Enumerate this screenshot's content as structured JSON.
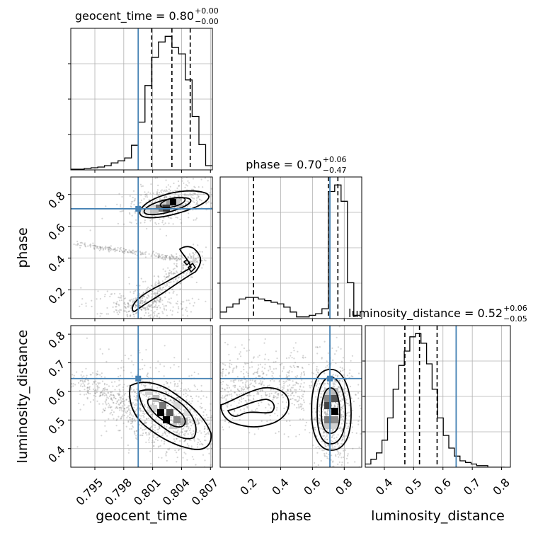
{
  "chart_data": {
    "type": "corner",
    "parameters": [
      {
        "key": "geocent_time",
        "label": "geocent_time",
        "range": [
          0.7925,
          0.8072
        ],
        "truth": 0.7995,
        "title": {
          "main": "geocent_time = 0.80",
          "sup": "+0.00",
          "sub": "−0.00"
        },
        "quantiles": [
          0.8009,
          0.803,
          0.8049
        ],
        "ticks": [
          0.795,
          0.798,
          0.801,
          0.804,
          0.807
        ],
        "tick_labels": [
          "0.795",
          "0.798",
          "0.801",
          "0.804",
          "0.807"
        ]
      },
      {
        "key": "phase",
        "label": "phase",
        "range": [
          0.02,
          0.91
        ],
        "truth": 0.71,
        "title": {
          "main": "phase = 0.70",
          "sup": "+0.06",
          "sub": "−0.47"
        },
        "quantiles": [
          0.23,
          0.7,
          0.76
        ],
        "ticks": [
          0.2,
          0.4,
          0.6,
          0.8
        ],
        "tick_labels": [
          "0.2",
          "0.4",
          "0.6",
          "0.8"
        ]
      },
      {
        "key": "luminosity_distance",
        "label": "luminosity_distance",
        "range": [
          0.335,
          0.83
        ],
        "truth": 0.645,
        "title": {
          "main": "luminosity_distance = 0.52",
          "sup": "+0.06",
          "sub": "−0.05"
        },
        "quantiles": [
          0.47,
          0.52,
          0.58
        ],
        "ticks": [
          0.4,
          0.5,
          0.6,
          0.7,
          0.8
        ],
        "tick_labels": [
          "0.4",
          "0.5",
          "0.6",
          "0.7",
          "0.8"
        ]
      }
    ],
    "histograms": [
      {
        "param": "geocent_time",
        "bin_edges": [
          0.7925,
          0.7932,
          0.7939,
          0.7946,
          0.7953,
          0.796,
          0.7967,
          0.7974,
          0.7981,
          0.7988,
          0.7995,
          0.8002,
          0.8009,
          0.8016,
          0.8023,
          0.803,
          0.8037,
          0.8044,
          0.8051,
          0.8058,
          0.8065,
          0.8072
        ],
        "counts": [
          1,
          1,
          2,
          3,
          4,
          6,
          10,
          13,
          17,
          35,
          68,
          120,
          160,
          182,
          190,
          174,
          165,
          128,
          76,
          36,
          6
        ]
      },
      {
        "param": "phase",
        "bin_edges": [
          0.02,
          0.04,
          0.06,
          0.08,
          0.1,
          0.12,
          0.14,
          0.16,
          0.18,
          0.2,
          0.22,
          0.24,
          0.26,
          0.28,
          0.3,
          0.32,
          0.34,
          0.36,
          0.38,
          0.4,
          0.42,
          0.44,
          0.46,
          0.48,
          0.5,
          0.52,
          0.54,
          0.56,
          0.58,
          0.6,
          0.62,
          0.64,
          0.66,
          0.68,
          0.7,
          0.72,
          0.74,
          0.76,
          0.78,
          0.8,
          0.82,
          0.84,
          0.86,
          0.88,
          0.9
        ],
        "counts": [
          4,
          4,
          7,
          7,
          9,
          9,
          12,
          12,
          13,
          13,
          13,
          13,
          12,
          12,
          11,
          11,
          10,
          10,
          9,
          9,
          7,
          7,
          4,
          4,
          1,
          1,
          1,
          1,
          2,
          2,
          3,
          3,
          6,
          6,
          78,
          78,
          82,
          82,
          72,
          72,
          22,
          22,
          2,
          2
        ]
      },
      {
        "param": "luminosity_distance",
        "bin_edges": [
          0.335,
          0.354,
          0.373,
          0.392,
          0.411,
          0.43,
          0.449,
          0.468,
          0.487,
          0.506,
          0.525,
          0.544,
          0.563,
          0.582,
          0.601,
          0.62,
          0.639,
          0.658,
          0.677,
          0.696,
          0.715,
          0.734,
          0.753,
          0.772,
          0.791,
          0.81
        ],
        "counts": [
          2,
          5,
          9,
          17,
          31,
          49,
          64,
          73,
          82,
          84,
          78,
          65,
          49,
          31,
          20,
          12,
          7,
          4,
          3,
          2,
          1,
          1,
          0,
          0,
          0
        ]
      }
    ],
    "pairs": [
      {
        "x": "geocent_time",
        "y": "phase"
      },
      {
        "x": "geocent_time",
        "y": "luminosity_distance"
      },
      {
        "x": "phase",
        "y": "luminosity_distance"
      }
    ],
    "truth_color": "#4682b4",
    "line_color": "#000000",
    "grid": true,
    "tick_label_rotation_deg": 45
  }
}
